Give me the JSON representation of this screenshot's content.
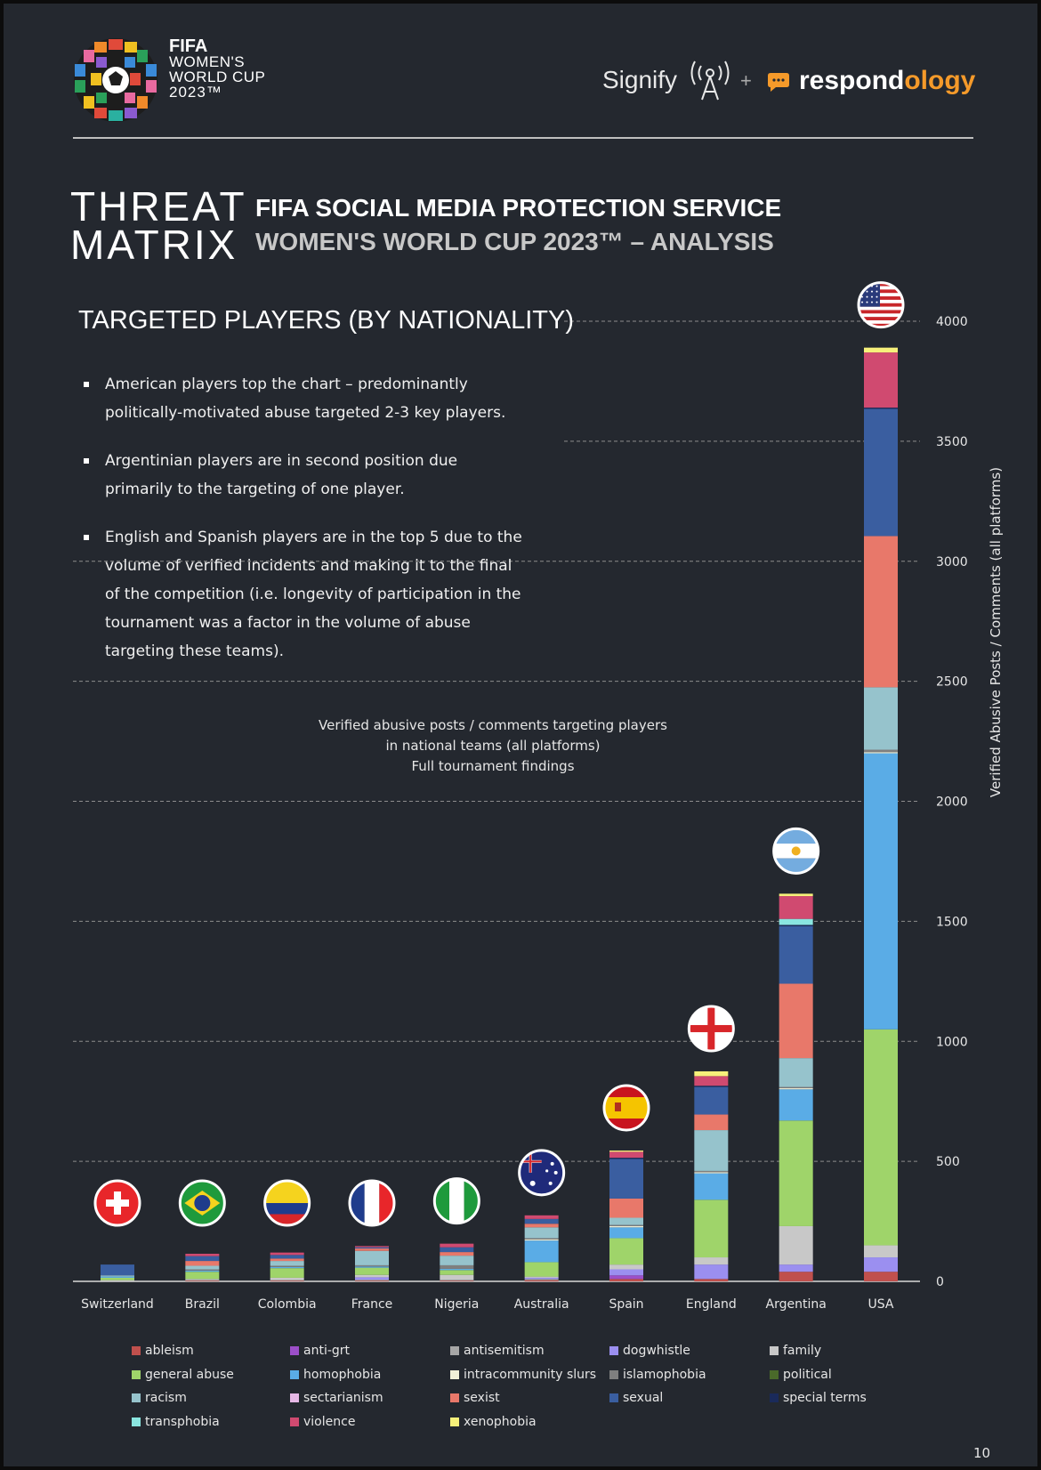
{
  "fifa_logo": {
    "line1": "FIFA",
    "line2": "WOMEN'S",
    "line3": "WORLD CUP",
    "line4": "2023™"
  },
  "partners": {
    "signify": "Signify",
    "plus": "+",
    "respondology_main": "respond",
    "respondology_accent": "ology"
  },
  "threat_matrix": {
    "line1": "THREAT",
    "line2": "MATRIX"
  },
  "service_title": "FIFA SOCIAL MEDIA PROTECTION SERVICE",
  "service_subtitle": "WOMEN'S WORLD CUP 2023™ – ANALYSIS",
  "section_heading": "TARGETED PLAYERS (BY NATIONALITY)",
  "bullets": [
    "American players top the chart – predominantly politically-motivated abuse targeted 2-3 key players.",
    "Argentinian players are in second position due primarily to the targeting of one player.",
    "English and Spanish players are in the top 5 due to the volume of verified incidents and making it to the final of the competition (i.e. longevity of participation in the tournament was a factor in the volume of abuse targeting these teams)."
  ],
  "caption": {
    "line1": "Verified abusive posts / comments targeting players",
    "line2": "in national teams (all platforms)",
    "line3": "Full tournament findings"
  },
  "page_number": "10",
  "chart_data": {
    "type": "bar",
    "stacked": true,
    "ylabel": "Verified Abusive Posts / Comments (all platforms)",
    "ylim": [
      0,
      4000
    ],
    "yticks": [
      0,
      500,
      1000,
      1500,
      2000,
      2500,
      3000,
      3500,
      4000
    ],
    "y_axis_position": "right",
    "grid": "dashed horizontal",
    "legend_position": "bottom",
    "categories": [
      "Switzerland",
      "Brazil",
      "Colombia",
      "France",
      "Nigeria",
      "Australia",
      "Spain",
      "England",
      "Argentina",
      "USA"
    ],
    "flags": [
      "switzerland-flag",
      "brazil-flag",
      "colombia-flag",
      "france-flag",
      "nigeria-flag",
      "australia-flag",
      "spain-flag",
      "england-flag",
      "argentina-flag",
      "usa-flag"
    ],
    "series": [
      {
        "name": "ableism",
        "color": "#c0504d",
        "values": [
          0,
          3,
          3,
          3,
          3,
          5,
          10,
          10,
          40,
          40
        ]
      },
      {
        "name": "anti-grt",
        "color": "#9c4fc9",
        "values": [
          0,
          0,
          0,
          0,
          0,
          0,
          15,
          0,
          0,
          0
        ]
      },
      {
        "name": "antisemitism",
        "color": "#a6a6a6",
        "values": [
          0,
          2,
          2,
          4,
          4,
          5,
          0,
          0,
          0,
          0
        ]
      },
      {
        "name": "dogwhistle",
        "color": "#9b8ff0",
        "values": [
          0,
          0,
          0,
          10,
          0,
          5,
          25,
          60,
          30,
          60
        ]
      },
      {
        "name": "family",
        "color": "#c8c8c8",
        "values": [
          5,
          5,
          10,
          10,
          20,
          5,
          20,
          30,
          160,
          50
        ]
      },
      {
        "name": "general abuse",
        "color": "#9fd46a",
        "values": [
          10,
          30,
          40,
          30,
          20,
          60,
          110,
          240,
          440,
          900
        ]
      },
      {
        "name": "homophobia",
        "color": "#5aace6",
        "values": [
          5,
          5,
          5,
          5,
          5,
          90,
          45,
          110,
          130,
          1150
        ]
      },
      {
        "name": "intracommunity slurs",
        "color": "#f0f0d8",
        "values": [
          0,
          0,
          0,
          0,
          0,
          5,
          5,
          5,
          5,
          5
        ]
      },
      {
        "name": "islamophobia",
        "color": "#7f7f7f",
        "values": [
          0,
          5,
          5,
          5,
          15,
          5,
          5,
          5,
          5,
          10
        ]
      },
      {
        "name": "political",
        "color": "#4a6a2a",
        "values": [
          0,
          0,
          0,
          0,
          0,
          0,
          0,
          0,
          0,
          0
        ]
      },
      {
        "name": "racism",
        "color": "#96c3cc",
        "values": [
          5,
          15,
          20,
          60,
          40,
          45,
          30,
          170,
          120,
          260
        ]
      },
      {
        "name": "sectarianism",
        "color": "#e6b8e6",
        "values": [
          0,
          0,
          0,
          0,
          0,
          0,
          0,
          0,
          0,
          0
        ]
      },
      {
        "name": "sexist",
        "color": "#e8786a",
        "values": [
          0,
          20,
          10,
          10,
          15,
          15,
          80,
          65,
          310,
          630
        ]
      },
      {
        "name": "sexual",
        "color": "#3a5ea0",
        "values": [
          45,
          20,
          15,
          5,
          20,
          20,
          165,
          115,
          240,
          530
        ]
      },
      {
        "name": "special terms",
        "color": "#1a2a5a",
        "values": [
          0,
          0,
          0,
          0,
          0,
          0,
          5,
          5,
          5,
          5
        ]
      },
      {
        "name": "transphobia",
        "color": "#8ae6e0",
        "values": [
          0,
          0,
          0,
          0,
          0,
          0,
          0,
          0,
          25,
          0
        ]
      },
      {
        "name": "violence",
        "color": "#d04a70",
        "values": [
          0,
          10,
          10,
          5,
          15,
          15,
          25,
          40,
          95,
          230
        ]
      },
      {
        "name": "xenophobia",
        "color": "#f6f07a",
        "values": [
          0,
          0,
          0,
          0,
          0,
          0,
          5,
          20,
          10,
          20
        ]
      }
    ]
  }
}
